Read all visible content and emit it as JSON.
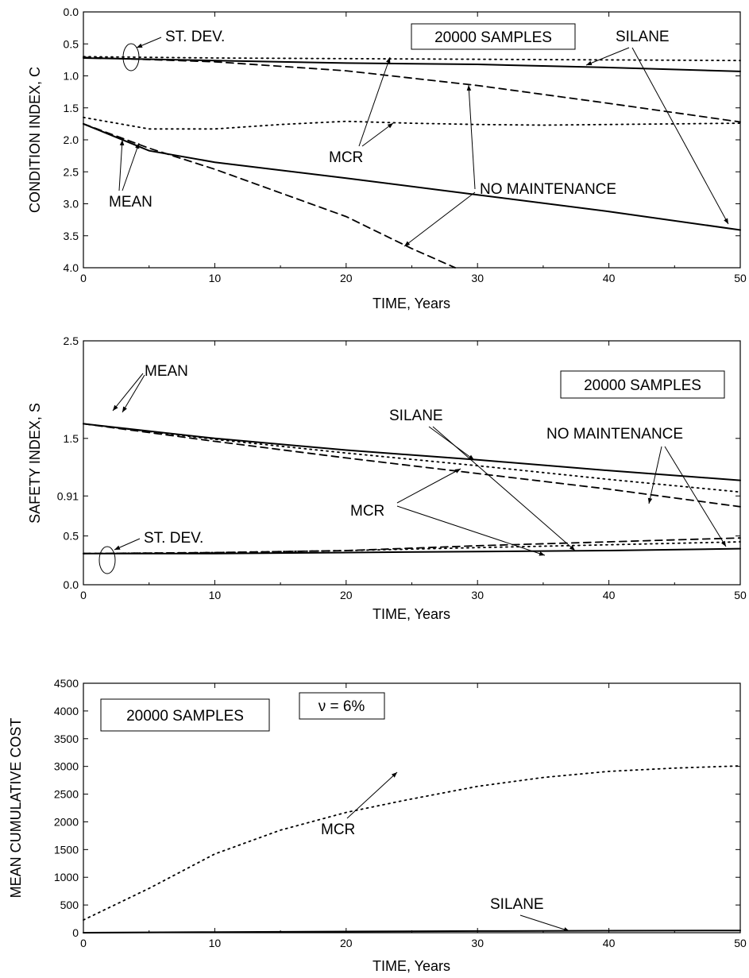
{
  "chart_data": [
    {
      "type": "line",
      "xlabel": "TIME, Years",
      "ylabel": "CONDITION INDEX, C",
      "xlim": [
        0,
        50
      ],
      "ylim": [
        0,
        4
      ],
      "y_inverted": true,
      "xticks": [
        "0",
        "10",
        "20",
        "30",
        "40",
        "50"
      ],
      "yticks": [
        "0.0",
        "0.5",
        "1.0",
        "1.5",
        "2.0",
        "2.5",
        "3.0",
        "3.5",
        "4.0"
      ],
      "grid": false,
      "boxed_label": "20000 SAMPLES",
      "annotations": [
        "ST. DEV.",
        "SILANE",
        "MCR",
        "MEAN",
        "NO MAINTENANCE"
      ],
      "series": [
        {
          "style": "solid",
          "x": [
            0,
            10,
            20,
            30,
            40,
            50
          ],
          "y": [
            0.72,
            0.76,
            0.8,
            0.82,
            0.87,
            0.93
          ]
        },
        {
          "style": "dotted",
          "x": [
            0,
            10,
            20,
            30,
            40,
            50
          ],
          "y": [
            0.7,
            0.72,
            0.73,
            0.74,
            0.75,
            0.76
          ]
        },
        {
          "style": "dashed",
          "x": [
            0,
            10,
            20,
            30,
            40,
            50
          ],
          "y": [
            0.71,
            0.78,
            0.92,
            1.15,
            1.43,
            1.72
          ]
        },
        {
          "style": "dotted",
          "x": [
            0,
            5,
            10,
            15,
            20,
            25,
            30,
            35,
            40,
            45,
            50
          ],
          "y": [
            1.65,
            1.83,
            1.83,
            1.76,
            1.71,
            1.74,
            1.76,
            1.77,
            1.76,
            1.75,
            1.74
          ]
        },
        {
          "style": "solid",
          "x": [
            0,
            5,
            10,
            20,
            30,
            40,
            50
          ],
          "y": [
            1.75,
            2.17,
            2.35,
            2.6,
            2.86,
            3.12,
            3.41
          ]
        },
        {
          "style": "dashed",
          "x": [
            0,
            5,
            10,
            15,
            20,
            25,
            28.3
          ],
          "y": [
            1.75,
            2.13,
            2.46,
            2.83,
            3.2,
            3.7,
            4.0
          ]
        }
      ]
    },
    {
      "type": "line",
      "xlabel": "TIME, Years",
      "ylabel": "SAFETY INDEX, S",
      "xlim": [
        0,
        50
      ],
      "ylim": [
        0,
        2.5
      ],
      "xticks": [
        "0",
        "10",
        "20",
        "30",
        "40",
        "50"
      ],
      "yticks": [
        "0.0",
        "0.5",
        "0.91",
        "1.5",
        "2.5"
      ],
      "grid": false,
      "boxed_label": "20000 SAMPLES",
      "annotations": [
        "MEAN",
        "SILANE",
        "NO MAINTENANCE",
        "MCR",
        "ST. DEV."
      ],
      "series": [
        {
          "style": "solid",
          "x": [
            0,
            10,
            20,
            30,
            40,
            50
          ],
          "y": [
            1.65,
            1.5,
            1.38,
            1.28,
            1.17,
            1.07
          ]
        },
        {
          "style": "dotted",
          "x": [
            0,
            10,
            20,
            30,
            40,
            50
          ],
          "y": [
            1.65,
            1.49,
            1.35,
            1.22,
            1.08,
            0.95
          ]
        },
        {
          "style": "dashed",
          "x": [
            0,
            10,
            20,
            30,
            40,
            50
          ],
          "y": [
            1.65,
            1.47,
            1.3,
            1.14,
            0.98,
            0.8
          ]
        },
        {
          "style": "solid",
          "x": [
            0,
            10,
            20,
            30,
            40,
            50
          ],
          "y": [
            0.32,
            0.32,
            0.33,
            0.34,
            0.35,
            0.37
          ]
        },
        {
          "style": "dotted",
          "x": [
            0,
            10,
            20,
            30,
            40,
            50
          ],
          "y": [
            0.32,
            0.33,
            0.35,
            0.38,
            0.41,
            0.44
          ]
        },
        {
          "style": "dashed",
          "x": [
            0,
            10,
            20,
            30,
            40,
            50
          ],
          "y": [
            0.32,
            0.33,
            0.35,
            0.4,
            0.44,
            0.48
          ]
        }
      ]
    },
    {
      "type": "line",
      "xlabel": "TIME, Years",
      "ylabel": "MEAN CUMULATIVE COST",
      "xlim": [
        0,
        50
      ],
      "ylim": [
        0,
        4500
      ],
      "xticks": [
        "0",
        "10",
        "20",
        "30",
        "40",
        "50"
      ],
      "yticks": [
        "0",
        "500",
        "1000",
        "1500",
        "2000",
        "2500",
        "3000",
        "3500",
        "4000",
        "4500"
      ],
      "grid": false,
      "boxed_label": "20000 SAMPLES",
      "boxed_label_2": "ν = 6%",
      "annotations": [
        "MCR",
        "SILANE"
      ],
      "series": [
        {
          "style": "dotted",
          "x": [
            0,
            5,
            10,
            15,
            20,
            24.5,
            30,
            35,
            40,
            45,
            50
          ],
          "y": [
            230,
            800,
            1420,
            1850,
            2170,
            2390,
            2640,
            2800,
            2910,
            2970,
            3010
          ]
        },
        {
          "style": "solid",
          "x": [
            0,
            10,
            20,
            30,
            40,
            50
          ],
          "y": [
            0,
            12,
            22,
            30,
            36,
            40
          ]
        }
      ]
    }
  ]
}
